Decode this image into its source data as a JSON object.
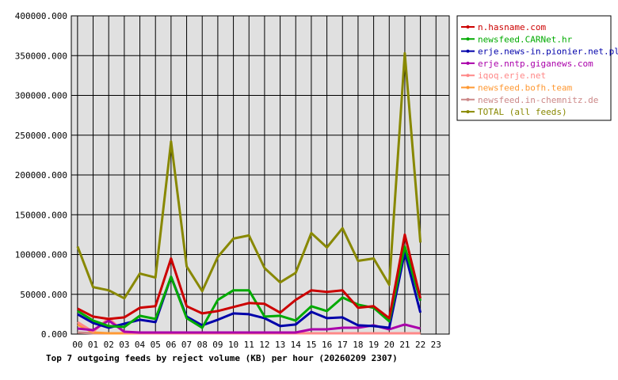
{
  "chart_data": {
    "type": "line",
    "title": "Top 7 outgoing feeds by reject volume (KB) per hour (20260209 2307)",
    "xlabel": "",
    "ylabel": "",
    "x": [
      "00",
      "01",
      "02",
      "03",
      "04",
      "05",
      "06",
      "07",
      "08",
      "09",
      "10",
      "11",
      "12",
      "13",
      "14",
      "15",
      "16",
      "17",
      "18",
      "19",
      "20",
      "21",
      "22",
      "23"
    ],
    "ylim": [
      0,
      400000
    ],
    "yticks": [
      "0.000",
      "50000.000",
      "100000.000",
      "150000.000",
      "200000.000",
      "250000.000",
      "300000.000",
      "350000.000",
      "400000.000"
    ],
    "grid": true,
    "legend_position": "right",
    "series": [
      {
        "name": "n.hasname.com",
        "color": "#cc0000",
        "values": [
          32000,
          22000,
          19000,
          21000,
          33000,
          35000,
          95000,
          35000,
          26000,
          29000,
          34000,
          39000,
          38000,
          27000,
          43000,
          55000,
          53000,
          55000,
          33000,
          35000,
          20000,
          125000,
          45000,
          null
        ]
      },
      {
        "name": "newsfeed.CARNet.hr",
        "color": "#00aa00",
        "values": [
          29000,
          17000,
          10000,
          9000,
          23000,
          19000,
          72000,
          20000,
          8000,
          43000,
          55000,
          55000,
          22000,
          23000,
          17000,
          35000,
          29000,
          46000,
          37000,
          33000,
          16000,
          110000,
          42000,
          null
        ]
      },
      {
        "name": "erje.news-in.pionier.net.pl",
        "color": "#0000aa",
        "values": [
          25000,
          14000,
          8000,
          13000,
          18000,
          15000,
          72000,
          22000,
          11000,
          18000,
          26000,
          25000,
          20000,
          10000,
          12000,
          28000,
          20000,
          21000,
          11000,
          10000,
          8000,
          103000,
          27000,
          null
        ]
      },
      {
        "name": "erje.nntp.giganews.com",
        "color": "#aa00aa",
        "values": [
          7000,
          5000,
          17000,
          3000,
          2000,
          2000,
          2000,
          2000,
          2000,
          2000,
          2000,
          2000,
          2000,
          2000,
          2000,
          6000,
          6000,
          8000,
          8000,
          11000,
          6000,
          12000,
          7000,
          null
        ]
      },
      {
        "name": "iqoq.erje.net",
        "color": "#ff8888",
        "values": [
          15000,
          3000,
          20000,
          2000,
          1000,
          1000,
          1000,
          1000,
          1000,
          1000,
          1000,
          1000,
          1000,
          1000,
          1000,
          1000,
          1000,
          1000,
          1000,
          1000,
          1000,
          1000,
          1000,
          null
        ]
      },
      {
        "name": "newsfeed.bofh.team",
        "color": "#ff9933",
        "values": [
          12000,
          2000,
          1000,
          1000,
          1000,
          1000,
          1000,
          1000,
          1000,
          1000,
          1000,
          1000,
          1000,
          1000,
          1000,
          1000,
          1000,
          1000,
          1000,
          1000,
          1000,
          1000,
          1000,
          null
        ]
      },
      {
        "name": "newsfeed.in-chemnitz.de",
        "color": "#cc8888",
        "values": [
          2000,
          1000,
          1000,
          1000,
          1000,
          1000,
          1000,
          1000,
          1000,
          1000,
          1000,
          1000,
          1000,
          1000,
          1000,
          1000,
          1000,
          1000,
          1000,
          1000,
          1000,
          1000,
          1000,
          null
        ]
      },
      {
        "name": "TOTAL (all feeds)",
        "color": "#888800",
        "values": [
          110000,
          59000,
          55000,
          45000,
          76000,
          71000,
          242000,
          85000,
          54000,
          97000,
          120000,
          124000,
          83000,
          65000,
          77000,
          127000,
          109000,
          133000,
          92000,
          95000,
          62000,
          353000,
          115000,
          null
        ]
      }
    ]
  }
}
